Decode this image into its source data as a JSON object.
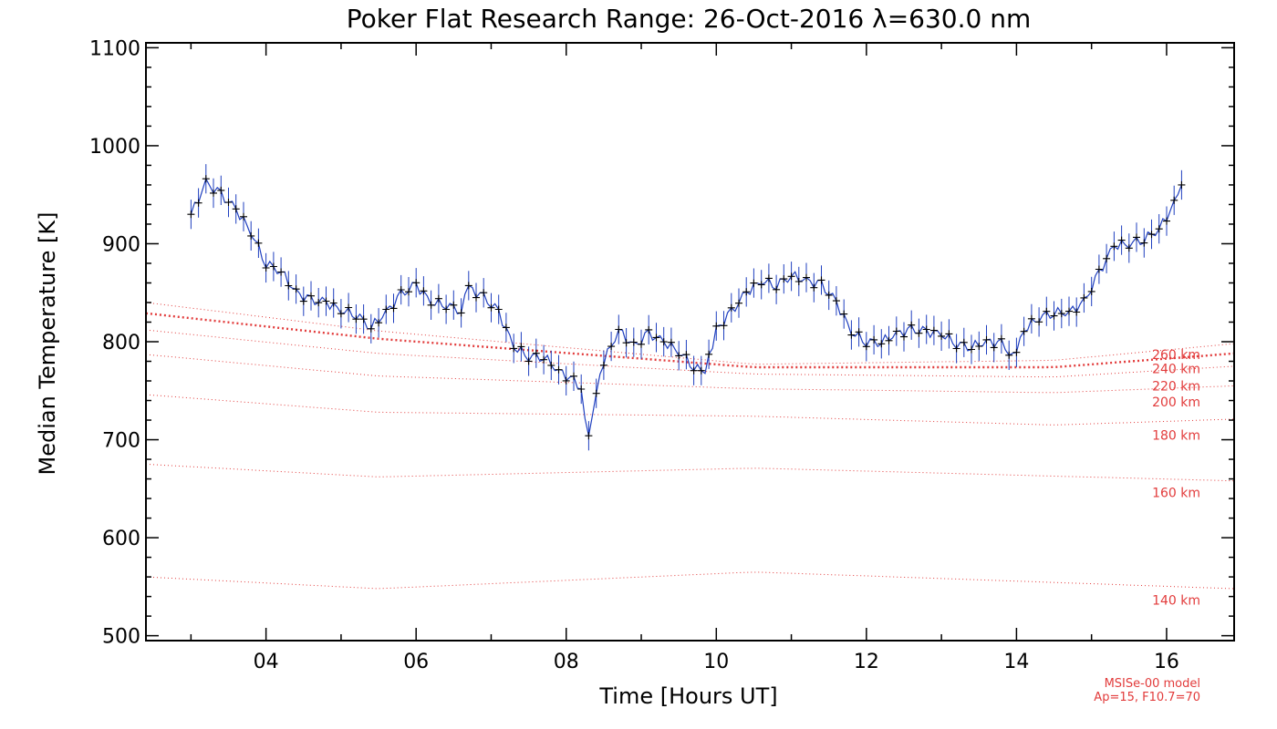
{
  "chart_data": {
    "type": "line",
    "title": "Poker Flat Research Range: 26-Oct-2016 λ=630.0 nm",
    "xlabel": "Time [Hours UT]",
    "ylabel": "Median Temperature [K]",
    "xlim": [
      2.4,
      16.9
    ],
    "ylim": [
      495,
      1105
    ],
    "x_ticks": [
      {
        "value": 4,
        "label": "04"
      },
      {
        "value": 6,
        "label": "06"
      },
      {
        "value": 8,
        "label": "08"
      },
      {
        "value": 10,
        "label": "10"
      },
      {
        "value": 12,
        "label": "12"
      },
      {
        "value": 14,
        "label": "14"
      },
      {
        "value": 16,
        "label": "16"
      }
    ],
    "y_ticks": [
      {
        "value": 500,
        "label": "500"
      },
      {
        "value": 600,
        "label": "600"
      },
      {
        "value": 700,
        "label": "700"
      },
      {
        "value": 800,
        "label": "800"
      },
      {
        "value": 900,
        "label": "900"
      },
      {
        "value": 1000,
        "label": "1000"
      },
      {
        "value": 1100,
        "label": "1100"
      }
    ],
    "grid": false,
    "legend": "none",
    "measurements": {
      "color_line": "#1f3fbf",
      "color_marker": "#000000",
      "error_bar": 15,
      "points": [
        [
          3.0,
          930
        ],
        [
          3.2,
          962
        ],
        [
          3.4,
          950
        ],
        [
          3.6,
          935
        ],
        [
          3.8,
          912
        ],
        [
          4.0,
          880
        ],
        [
          4.2,
          872
        ],
        [
          4.4,
          850
        ],
        [
          4.6,
          842
        ],
        [
          4.8,
          840
        ],
        [
          5.0,
          832
        ],
        [
          5.2,
          828
        ],
        [
          5.4,
          815
        ],
        [
          5.6,
          830
        ],
        [
          5.8,
          848
        ],
        [
          6.0,
          858
        ],
        [
          6.2,
          840
        ],
        [
          6.4,
          838
        ],
        [
          6.6,
          832
        ],
        [
          6.7,
          855
        ],
        [
          6.9,
          845
        ],
        [
          7.1,
          830
        ],
        [
          7.3,
          795
        ],
        [
          7.5,
          785
        ],
        [
          7.7,
          785
        ],
        [
          7.9,
          770
        ],
        [
          8.1,
          760
        ],
        [
          8.2,
          748
        ],
        [
          8.3,
          705
        ],
        [
          8.4,
          752
        ],
        [
          8.5,
          780
        ],
        [
          8.7,
          812
        ],
        [
          8.9,
          795
        ],
        [
          9.1,
          808
        ],
        [
          9.3,
          800
        ],
        [
          9.5,
          790
        ],
        [
          9.7,
          775
        ],
        [
          9.85,
          768
        ],
        [
          10.0,
          812
        ],
        [
          10.2,
          830
        ],
        [
          10.4,
          850
        ],
        [
          10.6,
          862
        ],
        [
          10.8,
          858
        ],
        [
          11.0,
          868
        ],
        [
          11.2,
          862
        ],
        [
          11.4,
          858
        ],
        [
          11.6,
          840
        ],
        [
          11.8,
          810
        ],
        [
          12.0,
          800
        ],
        [
          12.2,
          800
        ],
        [
          12.4,
          808
        ],
        [
          12.6,
          812
        ],
        [
          12.8,
          810
        ],
        [
          13.0,
          808
        ],
        [
          13.2,
          798
        ],
        [
          13.4,
          795
        ],
        [
          13.6,
          800
        ],
        [
          13.8,
          798
        ],
        [
          13.95,
          785
        ],
        [
          14.1,
          812
        ],
        [
          14.3,
          825
        ],
        [
          14.5,
          830
        ],
        [
          14.7,
          830
        ],
        [
          14.9,
          840
        ],
        [
          15.1,
          870
        ],
        [
          15.3,
          898
        ],
        [
          15.5,
          900
        ],
        [
          15.7,
          905
        ],
        [
          15.9,
          915
        ],
        [
          16.1,
          940
        ],
        [
          16.2,
          960
        ]
      ]
    },
    "model_note": {
      "line1": "MSISe-00 model",
      "line2": "Ap=15, F10.7=70",
      "color": "#e23b3b"
    },
    "model_curves": [
      {
        "label": "140 km",
        "points": [
          [
            2.4,
            560
          ],
          [
            5.5,
            548
          ],
          [
            10.5,
            565
          ],
          [
            16.9,
            548
          ]
        ]
      },
      {
        "label": "160 km",
        "points": [
          [
            2.4,
            675
          ],
          [
            5.5,
            662
          ],
          [
            10.5,
            671
          ],
          [
            16.9,
            658
          ]
        ]
      },
      {
        "label": "180 km",
        "points": [
          [
            2.4,
            746
          ],
          [
            5.5,
            728
          ],
          [
            10.5,
            724
          ],
          [
            14.5,
            715
          ],
          [
            16.9,
            721
          ]
        ]
      },
      {
        "label": "200 km",
        "points": [
          [
            2.4,
            787
          ],
          [
            5.5,
            765
          ],
          [
            10.5,
            752
          ],
          [
            14.5,
            748
          ],
          [
            16.9,
            755
          ]
        ]
      },
      {
        "label": "220 km",
        "points": [
          [
            2.4,
            812
          ],
          [
            5.5,
            788
          ],
          [
            10.5,
            767
          ],
          [
            14.5,
            764
          ],
          [
            16.9,
            775
          ]
        ]
      },
      {
        "label": "240 km",
        "points": [
          [
            2.4,
            829
          ],
          [
            5.5,
            803
          ],
          [
            10.5,
            774
          ],
          [
            14.5,
            774
          ],
          [
            16.9,
            788
          ]
        ]
      },
      {
        "label": "260 km",
        "points": [
          [
            2.4,
            840
          ],
          [
            5.5,
            811
          ],
          [
            10.5,
            777
          ],
          [
            14.5,
            781
          ],
          [
            16.9,
            798
          ]
        ]
      }
    ]
  }
}
